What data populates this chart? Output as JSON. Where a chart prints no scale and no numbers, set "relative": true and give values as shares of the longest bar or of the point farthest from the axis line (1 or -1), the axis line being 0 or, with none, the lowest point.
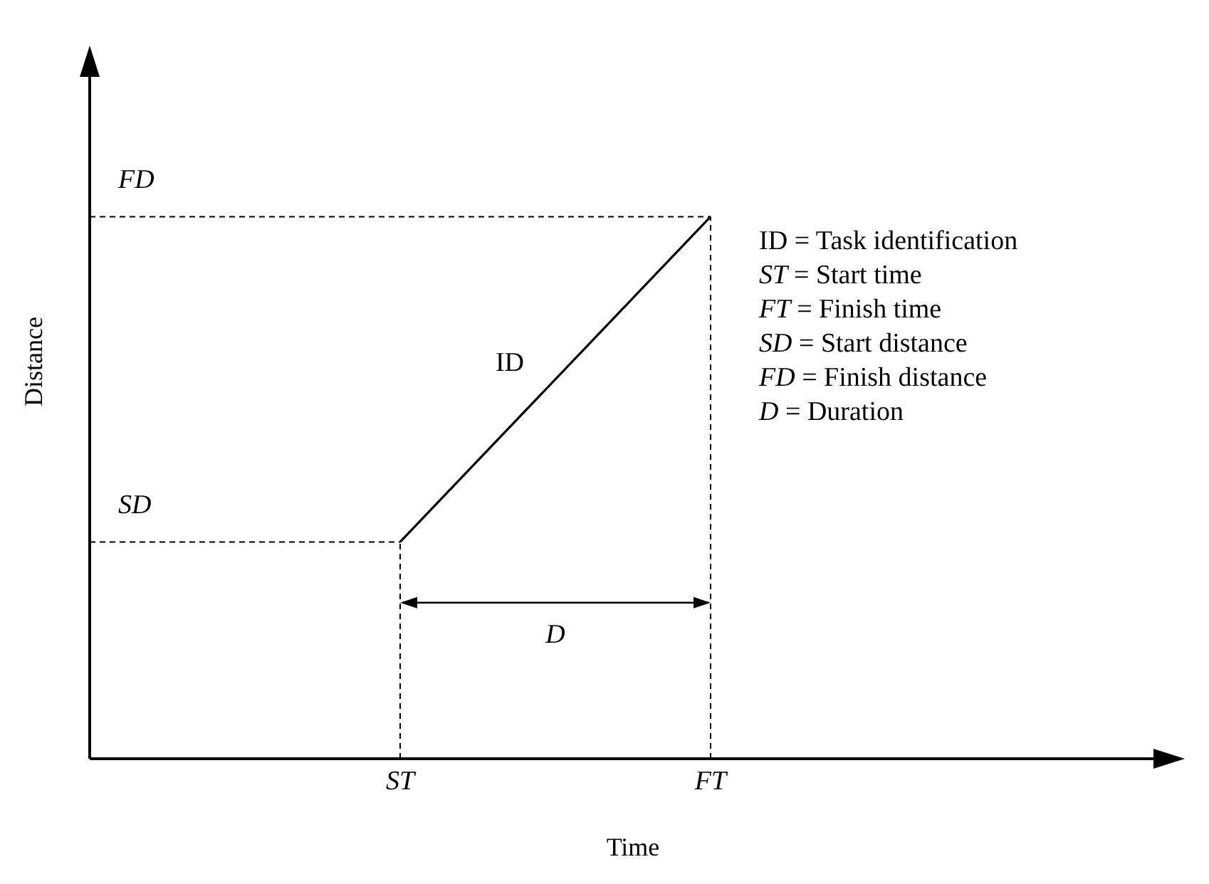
{
  "chart_data": {
    "type": "line",
    "xlabel": "Time",
    "ylabel": "Distance",
    "relative": true,
    "tick_labels": "x",
    "grid": false,
    "legend": false,
    "marker": "none",
    "categories": [
      null,
      null,
      "ST",
      null,
      "FT",
      null,
      null,
      null
    ],
    "series": [
      {
        "name": "ID",
        "color": "#000000",
        "values": [
          null,
          null,
          0.4,
          null,
          1,
          null,
          null,
          null
        ]
      }
    ],
    "ref_lines": [
      {
        "axis": "y",
        "value": 0.4,
        "label": "SD",
        "line_style": "dashed"
      },
      {
        "axis": "y",
        "value": 1,
        "label": "FD",
        "line_style": "dashed"
      },
      {
        "axis": "x",
        "value": "ST",
        "line_style": "dashed"
      },
      {
        "axis": "x",
        "value": "FT",
        "line_style": "dashed"
      }
    ],
    "annotations": [
      "D",
      "ID = Task identification",
      "ST = Start time",
      "FT = Finish time",
      "SD = Start distance",
      "FD = Finish distance",
      "D = Duration"
    ]
  }
}
